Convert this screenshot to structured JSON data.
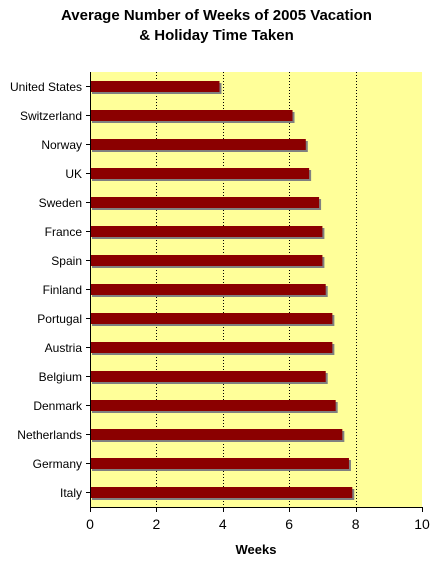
{
  "chart_data": {
    "type": "bar",
    "orientation": "horizontal",
    "title_lines": [
      "Average Number of Weeks of 2005 Vacation",
      "& Holiday Time Taken"
    ],
    "xlabel": "Weeks",
    "ylabel": "",
    "categories": [
      "United States",
      "Switzerland",
      "Norway",
      "UK",
      "Sweden",
      "France",
      "Spain",
      "Finland",
      "Portugal",
      "Austria",
      "Belgium",
      "Denmark",
      "Netherlands",
      "Germany",
      "Italy"
    ],
    "values": [
      3.9,
      6.1,
      6.5,
      6.6,
      6.9,
      7.0,
      7.0,
      7.1,
      7.3,
      7.3,
      7.1,
      7.4,
      7.6,
      7.8,
      7.9
    ],
    "xlim": [
      0,
      10
    ],
    "xticks": [
      "0",
      "2",
      "4",
      "6",
      "8",
      "10"
    ],
    "grid": "vertical dotted",
    "legend": "none",
    "colors": {
      "bar": "#8b0000",
      "bar_shadow": "#808080",
      "plot_background": "#ffff99",
      "gridline": "#000000"
    }
  }
}
